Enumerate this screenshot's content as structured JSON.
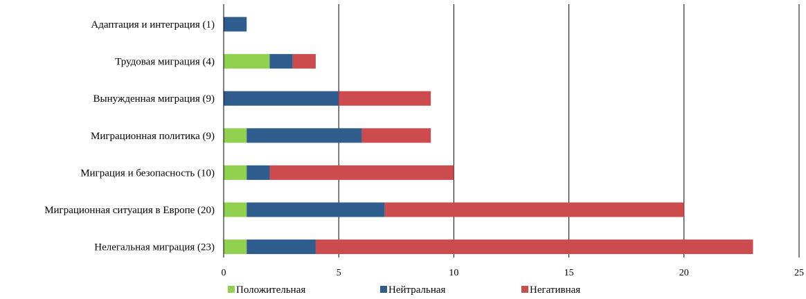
{
  "chart_data": {
    "type": "bar",
    "orientation": "horizontal",
    "stacked": true,
    "categories": [
      "Адаптация и интеграция (1)",
      "Трудовая миграция (4)",
      "Вынужденная миграция (9)",
      "Миграционная политика (9)",
      "Миграция и безопасность (10)",
      "Миграционная ситуация в Европе (20)",
      "Нелегальная миграция (23)"
    ],
    "series": [
      {
        "name": "Положительная",
        "color": "#92d050",
        "values": [
          0,
          2,
          0,
          1,
          1,
          1,
          1
        ]
      },
      {
        "name": "Нейтральная",
        "color": "#2f5d8e",
        "values": [
          1,
          1,
          5,
          5,
          1,
          6,
          3
        ]
      },
      {
        "name": "Негативная",
        "color": "#cb4b4f",
        "values": [
          0,
          1,
          4,
          3,
          8,
          13,
          19
        ]
      }
    ],
    "xlim": [
      0,
      25
    ],
    "xticks": [
      0,
      5,
      10,
      15,
      20,
      25
    ],
    "gridlines": "vertical",
    "legend": "bottom"
  }
}
